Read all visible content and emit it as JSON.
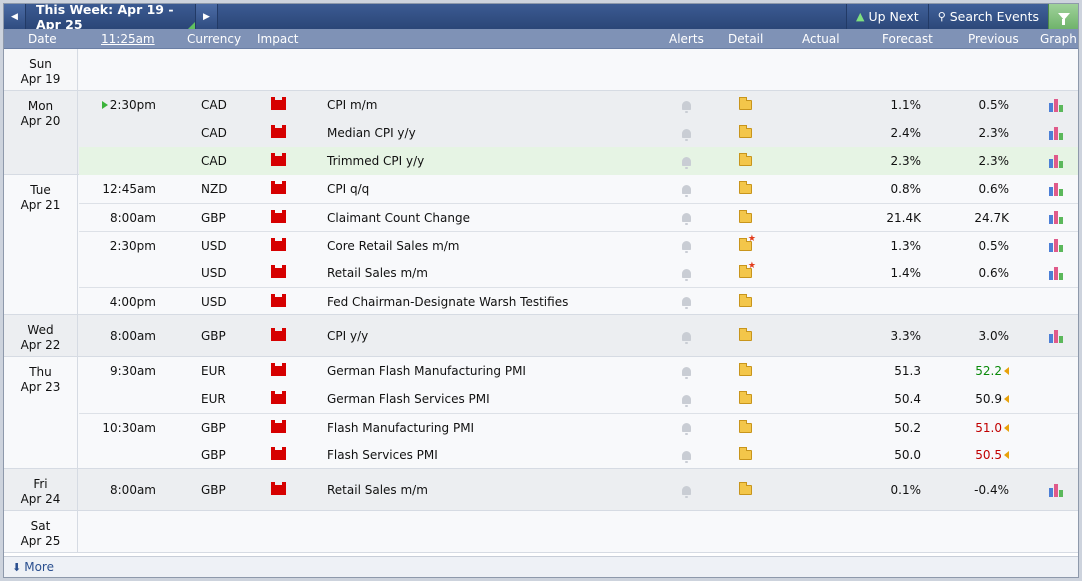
{
  "toolbar": {
    "week_label": "This Week: Apr 19 - Apr 25",
    "up_next_label": "Up Next",
    "search_label": "Search Events"
  },
  "columns": {
    "date": "Date",
    "time": "11:25am",
    "currency": "Currency",
    "impact": "Impact",
    "alerts": "Alerts",
    "detail": "Detail",
    "actual": "Actual",
    "forecast": "Forecast",
    "previous": "Previous",
    "graph": "Graph"
  },
  "colors": {
    "high_impact": "#d60000",
    "better": "#0a8a0a",
    "worse": "#c00000",
    "accent": "#2b4677"
  },
  "days": [
    {
      "day": "Sun",
      "date": "Apr 19",
      "events": []
    },
    {
      "day": "Mon",
      "date": "Apr 20",
      "events": [
        {
          "time": "2:30pm",
          "current": true,
          "currency": "CAD",
          "impact": "high",
          "name": "CPI m/m",
          "detail_new": false,
          "actual": "",
          "forecast": "1.1%",
          "previous": "0.5%",
          "prev_rev": "",
          "graph": true
        },
        {
          "time": "",
          "currency": "CAD",
          "impact": "high",
          "name": "Median CPI y/y",
          "detail_new": false,
          "actual": "",
          "forecast": "2.4%",
          "previous": "2.3%",
          "prev_rev": "",
          "graph": true
        },
        {
          "time": "",
          "currency": "CAD",
          "impact": "high",
          "name": "Trimmed CPI y/y",
          "detail_new": false,
          "actual": "",
          "forecast": "2.3%",
          "previous": "2.3%",
          "prev_rev": "",
          "graph": true,
          "highlight": true
        }
      ]
    },
    {
      "day": "Tue",
      "date": "Apr 21",
      "events": [
        {
          "time": "12:45am",
          "currency": "NZD",
          "impact": "high",
          "name": "CPI q/q",
          "detail_new": false,
          "actual": "",
          "forecast": "0.8%",
          "previous": "0.6%",
          "prev_rev": "",
          "graph": true
        },
        {
          "time": "8:00am",
          "currency": "GBP",
          "impact": "high",
          "name": "Claimant Count Change",
          "detail_new": false,
          "actual": "",
          "forecast": "21.4K",
          "previous": "24.7K",
          "prev_rev": "",
          "graph": true,
          "sep": true
        },
        {
          "time": "2:30pm",
          "currency": "USD",
          "impact": "high",
          "name": "Core Retail Sales m/m",
          "detail_new": true,
          "actual": "",
          "forecast": "1.3%",
          "previous": "0.5%",
          "prev_rev": "",
          "graph": true,
          "sep": true
        },
        {
          "time": "",
          "currency": "USD",
          "impact": "high",
          "name": "Retail Sales m/m",
          "detail_new": true,
          "actual": "",
          "forecast": "1.4%",
          "previous": "0.6%",
          "prev_rev": "",
          "graph": true
        },
        {
          "time": "4:00pm",
          "currency": "USD",
          "impact": "high",
          "name": "Fed Chairman-Designate Warsh Testifies",
          "detail_new": false,
          "actual": "",
          "forecast": "",
          "previous": "",
          "prev_rev": "",
          "graph": false,
          "sep": true
        }
      ]
    },
    {
      "day": "Wed",
      "date": "Apr 22",
      "events": [
        {
          "time": "8:00am",
          "currency": "GBP",
          "impact": "high",
          "name": "CPI y/y",
          "detail_new": false,
          "actual": "",
          "forecast": "3.3%",
          "previous": "3.0%",
          "prev_rev": "",
          "graph": true
        }
      ]
    },
    {
      "day": "Thu",
      "date": "Apr 23",
      "events": [
        {
          "time": "9:30am",
          "currency": "EUR",
          "impact": "high",
          "name": "German Flash Manufacturing PMI",
          "detail_new": false,
          "actual": "",
          "forecast": "51.3",
          "previous": "52.2",
          "prev_rev": "up",
          "graph": false
        },
        {
          "time": "",
          "currency": "EUR",
          "impact": "high",
          "name": "German Flash Services PMI",
          "detail_new": false,
          "actual": "",
          "forecast": "50.4",
          "previous": "50.9",
          "prev_rev": "neutral",
          "graph": false
        },
        {
          "time": "10:30am",
          "currency": "GBP",
          "impact": "high",
          "name": "Flash Manufacturing PMI",
          "detail_new": false,
          "actual": "",
          "forecast": "50.2",
          "previous": "51.0",
          "prev_rev": "down",
          "graph": false,
          "sep": true
        },
        {
          "time": "",
          "currency": "GBP",
          "impact": "high",
          "name": "Flash Services PMI",
          "detail_new": false,
          "actual": "",
          "forecast": "50.0",
          "previous": "50.5",
          "prev_rev": "down",
          "graph": false
        }
      ]
    },
    {
      "day": "Fri",
      "date": "Apr 24",
      "events": [
        {
          "time": "8:00am",
          "currency": "GBP",
          "impact": "high",
          "name": "Retail Sales m/m",
          "detail_new": false,
          "actual": "",
          "forecast": "0.1%",
          "previous": "-0.4%",
          "prev_rev": "",
          "graph": true
        }
      ]
    },
    {
      "day": "Sat",
      "date": "Apr 25",
      "events": []
    }
  ],
  "footer": {
    "more_label": "More"
  }
}
